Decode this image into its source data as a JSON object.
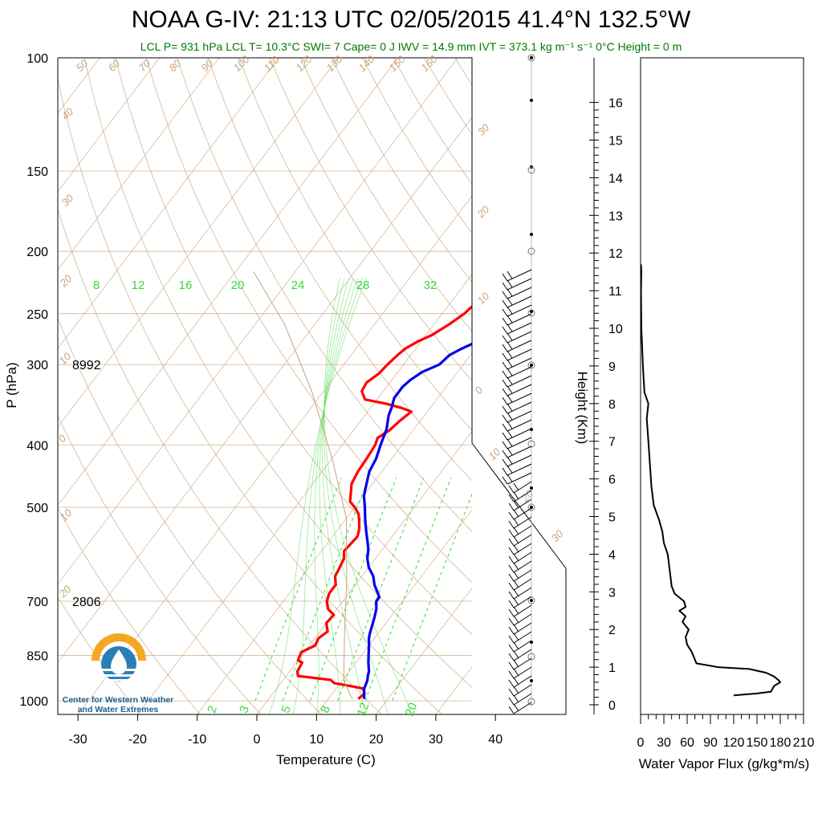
{
  "title": "NOAA G-IV: 21:13 UTC 02/05/2015  41.4°N 132.5°W",
  "subtitle": "LCL P= 931 hPa  LCL T= 10.3°C  SWI= 7  Cape= 0 J  IWV = 14.9 mm  IVT = 373.1 kg m⁻¹ s⁻¹  0°C Height = 0 m",
  "logo_text": [
    "Center for Western Weather",
    "and Water Extremes"
  ],
  "colors": {
    "temperature": "#ff0000",
    "dewpoint": "#0000ee",
    "mixing": "#39d939",
    "adiabat": "#c9a47c",
    "annotation": "#007a00"
  },
  "chart_data": [
    {
      "type": "line",
      "name": "skew-t",
      "xlabel": "Temperature (C)",
      "ylabel": "P (hPa)",
      "x_ticks": [
        -30,
        -20,
        -10,
        0,
        10,
        20,
        30,
        40
      ],
      "y_ticks": [
        100,
        150,
        200,
        250,
        300,
        400,
        500,
        700,
        850,
        1000
      ],
      "height_annotations": [
        {
          "p": 300,
          "label": "8992"
        },
        {
          "p": 700,
          "label": "2806"
        }
      ],
      "mixing_ratio_labels": [
        "8",
        "12",
        "16",
        "20",
        "24",
        "28",
        "32"
      ],
      "mixing_ratio_bottom_labels": [
        "2",
        "3",
        "5",
        "8",
        "12",
        "20"
      ],
      "adiabat_labels": [
        "50",
        "60",
        "70",
        "80",
        "90",
        "100",
        "110",
        "120",
        "130",
        "140",
        "150",
        "160",
        "40",
        "30",
        "20",
        "10",
        "0",
        "10",
        "20",
        "30",
        "20",
        "10",
        "0",
        "10",
        "20",
        "30"
      ],
      "series": [
        {
          "key": "temperature",
          "points": [
            [
              15,
              993
            ],
            [
              15.4,
              975
            ],
            [
              14.5,
              957
            ],
            [
              11,
              945
            ],
            [
              9,
              939
            ],
            [
              8,
              928
            ],
            [
              2,
              915
            ],
            [
              1.3,
              900
            ],
            [
              1,
              872
            ],
            [
              0,
              865
            ],
            [
              -0.5,
              840
            ],
            [
              1,
              820
            ],
            [
              0.6,
              800
            ],
            [
              1.3,
              780
            ],
            [
              0,
              757
            ],
            [
              0.2,
              735
            ],
            [
              -1.5,
              720
            ],
            [
              -2.7,
              700
            ],
            [
              -3.3,
              680
            ],
            [
              -3.3,
              660
            ],
            [
              -4.5,
              640
            ],
            [
              -4.8,
              622
            ],
            [
              -5.3,
              600
            ],
            [
              -6.2,
              585
            ],
            [
              -6,
              570
            ],
            [
              -5.8,
              555
            ],
            [
              -6.5,
              540
            ],
            [
              -7.5,
              525
            ],
            [
              -8.5,
              512
            ],
            [
              -10,
              500
            ],
            [
              -11.5,
              490
            ],
            [
              -12.8,
              470
            ],
            [
              -13.5,
              460
            ],
            [
              -14,
              440
            ],
            [
              -14.2,
              420
            ],
            [
              -14.5,
              400
            ],
            [
              -15,
              390
            ],
            [
              -14,
              380
            ],
            [
              -13.5,
              368
            ],
            [
              -12.7,
              355
            ],
            [
              -15,
              350
            ],
            [
              -18,
              345
            ],
            [
              -22,
              340
            ],
            [
              -23.6,
              330
            ],
            [
              -23.9,
              320
            ],
            [
              -23,
              310
            ],
            [
              -22.7,
              300
            ],
            [
              -22.2,
              290
            ],
            [
              -21.7,
              283
            ],
            [
              -20.5,
              276
            ],
            [
              -19,
              270
            ],
            [
              -17.5,
              260
            ],
            [
              -16.3,
              250
            ],
            [
              -16,
              245
            ],
            [
              -15,
              237
            ],
            [
              -14,
              230
            ],
            [
              -13.6,
              222
            ],
            [
              -12.7,
              215
            ],
            [
              -12.1,
              207
            ],
            [
              -11.5,
              204
            ]
          ]
        },
        {
          "key": "dewpoint",
          "points": [
            [
              16,
              993
            ],
            [
              14.7,
              957
            ],
            [
              14.2,
              930
            ],
            [
              13.7,
              915
            ],
            [
              13.3,
              900
            ],
            [
              12,
              870
            ],
            [
              11,
              845
            ],
            [
              10,
              820
            ],
            [
              9.1,
              800
            ],
            [
              8.6,
              785
            ],
            [
              7.8,
              757
            ],
            [
              7.3,
              740
            ],
            [
              6.6,
              720
            ],
            [
              5.6,
              700
            ],
            [
              5.6,
              690
            ],
            [
              3.2,
              660
            ],
            [
              1.9,
              640
            ],
            [
              0,
              620
            ],
            [
              -1.4,
              600
            ],
            [
              -2.3,
              582
            ],
            [
              -3.5,
              565
            ],
            [
              -5,
              545
            ],
            [
              -6.5,
              525
            ],
            [
              -8.3,
              500
            ],
            [
              -9.9,
              480
            ],
            [
              -11,
              460
            ],
            [
              -12.1,
              440
            ],
            [
              -12.6,
              420
            ],
            [
              -13.6,
              400
            ],
            [
              -14.6,
              378
            ],
            [
              -16,
              360
            ],
            [
              -16.5,
              350
            ],
            [
              -17.3,
              338
            ],
            [
              -17.3,
              325
            ],
            [
              -16.9,
              317
            ],
            [
              -15.9,
              308
            ],
            [
              -14,
              300
            ],
            [
              -13.5,
              290
            ],
            [
              -12.4,
              284
            ],
            [
              -11,
              278
            ],
            [
              -9.3,
              273
            ],
            [
              -8.5,
              266
            ],
            [
              -7.8,
              258
            ],
            [
              -7.3,
              250
            ],
            [
              -6.6,
              243
            ],
            [
              -5.5,
              236
            ],
            [
              -4.1,
              232
            ],
            [
              -3.4,
              226
            ],
            [
              -2.6,
              219
            ],
            [
              -2.3,
              212
            ],
            [
              -1.8,
              205
            ],
            [
              -1.6,
              202
            ]
          ]
        },
        {
          "key": "parcel",
          "points": [
            [
              14,
              993
            ],
            [
              10.3,
              931
            ],
            [
              5,
              800
            ],
            [
              -2,
              650
            ],
            [
              -10,
              520
            ],
            [
              -20,
              420
            ],
            [
              -32,
              330
            ],
            [
              -45,
              260
            ],
            [
              -57,
              215
            ]
          ]
        }
      ]
    },
    {
      "type": "line",
      "name": "water-vapor-flux",
      "xlabel": "Water Vapor Flux (g/kg*m/s)",
      "ylabel": "Height (Km)",
      "x_ticks": [
        "0",
        "30",
        "60",
        "90",
        "120",
        "150",
        "180",
        "210"
      ],
      "y_ticks": [
        "0",
        "1",
        "2",
        "3",
        "4",
        "5",
        "6",
        "7",
        "8",
        "9",
        "10",
        "11",
        "12",
        "13",
        "14",
        "15",
        "16"
      ],
      "xlim": [
        0,
        210
      ],
      "ylim": [
        0,
        16
      ],
      "points": [
        [
          120,
          0.25
        ],
        [
          150,
          0.3
        ],
        [
          168,
          0.35
        ],
        [
          172,
          0.5
        ],
        [
          180,
          0.6
        ],
        [
          178,
          0.65
        ],
        [
          172,
          0.75
        ],
        [
          162,
          0.85
        ],
        [
          140,
          0.95
        ],
        [
          100,
          1.0
        ],
        [
          72,
          1.1
        ],
        [
          66,
          1.4
        ],
        [
          60,
          1.6
        ],
        [
          58,
          1.8
        ],
        [
          62,
          2.0
        ],
        [
          54,
          2.2
        ],
        [
          58,
          2.35
        ],
        [
          50,
          2.5
        ],
        [
          58,
          2.6
        ],
        [
          56,
          2.75
        ],
        [
          44,
          2.95
        ],
        [
          40,
          3.15
        ],
        [
          38,
          3.5
        ],
        [
          35,
          4.0
        ],
        [
          30,
          4.3
        ],
        [
          28,
          4.6
        ],
        [
          24,
          4.9
        ],
        [
          17,
          5.3
        ],
        [
          14,
          5.8
        ],
        [
          12,
          6.4
        ],
        [
          10,
          7.0
        ],
        [
          8,
          7.6
        ],
        [
          10,
          8.0
        ],
        [
          5,
          8.3
        ],
        [
          3,
          9.0
        ],
        [
          1,
          10.0
        ],
        [
          0.5,
          11.0
        ],
        [
          1,
          11.5
        ],
        [
          0.5,
          11.7
        ]
      ]
    }
  ]
}
